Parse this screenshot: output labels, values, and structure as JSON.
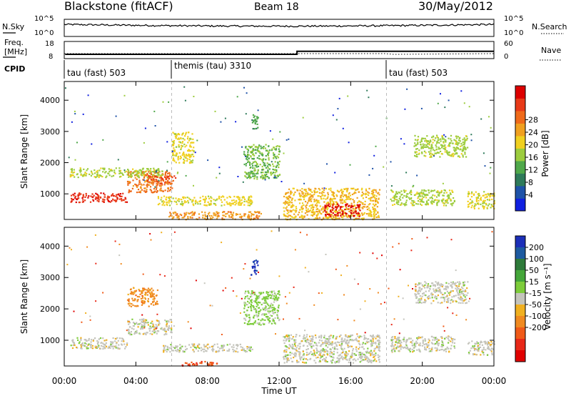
{
  "header": {
    "station": "Blackstone (fitACF)",
    "beam": "Beam 18",
    "date": "30/May/2012"
  },
  "strip_labels": {
    "nsky": "N.Sky",
    "nsearch": "N.Search",
    "freq_line1": "Freq.",
    "freq_line2": "[MHz]",
    "nave": "Nave",
    "cpid": "CPID"
  },
  "strip_ticks": {
    "noise_left": [
      "10^5",
      "10^0"
    ],
    "noise_right": [
      "10^5",
      "10^0"
    ],
    "freq_left": [
      "18",
      "8"
    ],
    "freq_right": [
      "60",
      "0"
    ]
  },
  "cpid_modes": [
    {
      "label": "tau (fast) 503",
      "start_hour": 0
    },
    {
      "label": "themis (tau) 3310",
      "start_hour": 6
    },
    {
      "label": "tau (fast) 503",
      "start_hour": 18
    }
  ],
  "x_axis": {
    "label": "Time UT",
    "ticks": [
      "00:00",
      "04:00",
      "08:00",
      "12:00",
      "16:00",
      "20:00",
      "00:00"
    ],
    "range_hours": [
      0,
      24
    ]
  },
  "y_axis": {
    "label": "Slant Range [km]",
    "ticks": [
      "1000",
      "2000",
      "3000",
      "4000"
    ],
    "range_km": [
      180,
      4600
    ]
  },
  "colorbars": {
    "power": {
      "label": "Power [dB]",
      "ticks": [
        "4",
        "8",
        "12",
        "16",
        "20",
        "24",
        "28"
      ],
      "colors": [
        "#1020e0",
        "#1e52a8",
        "#2e7a5a",
        "#4fa84a",
        "#9ccc3e",
        "#f0d020",
        "#f0a020",
        "#ef6a1a",
        "#e83a18",
        "#dd0000"
      ]
    },
    "velocity": {
      "label": "Velocity [m s⁻¹]",
      "ticks": [
        "200",
        "100",
        "50",
        "15",
        "-15",
        "-50",
        "-100",
        "-200"
      ],
      "colors": [
        "#1c2fb8",
        "#1d5aa0",
        "#2e7a3a",
        "#44a63a",
        "#7dcc3a",
        "#c4c4bc",
        "#f0b020",
        "#f08a20",
        "#f05a18",
        "#e82818",
        "#e00000"
      ]
    }
  },
  "chart_data": {
    "type": "heatmap",
    "title": "Blackstone (fitACF)  Beam 18  30/May/2012",
    "xlabel": "Time UT",
    "ylabel": "Slant Range [km]",
    "xlim_hours": [
      0,
      24
    ],
    "ylim_km": [
      180,
      4600
    ],
    "grid": false,
    "panels": [
      {
        "name": "Power [dB]",
        "clim": [
          0,
          30
        ],
        "scatter_regions": [
          {
            "t": [
              0.3,
              3.5
            ],
            "r": [
              750,
              1050
            ],
            "value": 26
          },
          {
            "t": [
              3.5,
              6.0
            ],
            "r": [
              1050,
              1750
            ],
            "value": 22
          },
          {
            "t": [
              0.3,
              5.5
            ],
            "r": [
              1550,
              1850
            ],
            "value": 14
          },
          {
            "t": [
              4.6,
              6.2
            ],
            "r": [
              1350,
              1600
            ],
            "value": 24
          },
          {
            "t": [
              5.2,
              10.5
            ],
            "r": [
              650,
              950
            ],
            "value": 16
          },
          {
            "t": [
              5.8,
              11.0
            ],
            "r": [
              200,
              450
            ],
            "value": 20
          },
          {
            "t": [
              10.0,
              12.0
            ],
            "r": [
              1500,
              2600
            ],
            "value": 12
          },
          {
            "t": [
              12.2,
              17.6
            ],
            "r": [
              200,
              1200
            ],
            "value": 18
          },
          {
            "t": [
              14.5,
              16.5
            ],
            "r": [
              300,
              700
            ],
            "value": 28
          },
          {
            "t": [
              18.2,
              21.8
            ],
            "r": [
              650,
              1150
            ],
            "value": 14
          },
          {
            "t": [
              19.5,
              22.5
            ],
            "r": [
              2200,
              2900
            ],
            "value": 14
          },
          {
            "t": [
              6.0,
              7.2
            ],
            "r": [
              2000,
              3000
            ],
            "value": 16
          },
          {
            "t": [
              10.4,
              10.8
            ],
            "r": [
              3100,
              3600
            ],
            "value": 10
          },
          {
            "t": [
              22.5,
              24.0
            ],
            "r": [
              550,
              1100
            ],
            "value": 16
          }
        ]
      },
      {
        "name": "Velocity [m s⁻¹]",
        "clim": [
          -200,
          200
        ],
        "scatter_regions": [
          {
            "t": [
              0.3,
              3.5
            ],
            "r": [
              750,
              1100
            ],
            "value": 0
          },
          {
            "t": [
              3.5,
              6.0
            ],
            "r": [
              1200,
              1700
            ],
            "value": 0
          },
          {
            "t": [
              3.5,
              5.2
            ],
            "r": [
              2100,
              2700
            ],
            "value": -70
          },
          {
            "t": [
              5.5,
              10.5
            ],
            "r": [
              650,
              900
            ],
            "value": 0
          },
          {
            "t": [
              6.5,
              8.5
            ],
            "r": [
              200,
              350
            ],
            "value": -120
          },
          {
            "t": [
              10.0,
              12.0
            ],
            "r": [
              1500,
              2600
            ],
            "value": 30
          },
          {
            "t": [
              12.2,
              17.6
            ],
            "r": [
              300,
              1200
            ],
            "value": 0
          },
          {
            "t": [
              18.2,
              21.8
            ],
            "r": [
              650,
              1150
            ],
            "value": 0
          },
          {
            "t": [
              19.5,
              22.5
            ],
            "r": [
              2200,
              2900
            ],
            "value": 0
          },
          {
            "t": [
              10.4,
              10.8
            ],
            "r": [
              3100,
              3600
            ],
            "value": 180
          },
          {
            "t": [
              22.5,
              24.0
            ],
            "r": [
              550,
              1000
            ],
            "value": 0
          }
        ]
      }
    ],
    "noise_sky": {
      "scale": "log",
      "range": [
        1,
        100000
      ],
      "baseline_level": 3.5
    },
    "frequency_mhz": {
      "segments": [
        {
          "t": [
            0.05,
            13.0
          ],
          "value": 10.5
        },
        {
          "t": [
            13.0,
            24.0
          ],
          "value": 12.3
        }
      ],
      "range": [
        8,
        18
      ]
    }
  }
}
